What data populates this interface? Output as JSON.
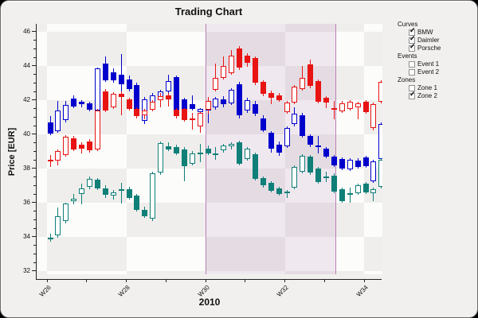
{
  "window": {
    "title": "Trading Chart"
  },
  "axes": {
    "y": {
      "label": "Price [EUR]",
      "ticks": [
        32,
        34,
        36,
        38,
        40,
        42,
        44,
        46
      ],
      "minor_step": 0.5,
      "range": [
        31.8,
        46.5
      ]
    },
    "x": {
      "label": "2010",
      "weeks": [
        26,
        27,
        28,
        29,
        30,
        31,
        32,
        33,
        34
      ],
      "labeled_weeks": [
        26,
        28,
        30,
        32,
        34
      ],
      "tick_label_prefix": "W"
    }
  },
  "legend": {
    "sections": [
      {
        "label": "Curves",
        "items": [
          {
            "label": "BMW",
            "checked": true
          },
          {
            "label": "Daimler",
            "checked": true
          },
          {
            "label": "Porsche",
            "checked": true
          }
        ]
      },
      {
        "label": "Events",
        "items": [
          {
            "label": "Event 1",
            "checked": false
          },
          {
            "label": "Event 2",
            "checked": false
          }
        ]
      },
      {
        "label": "Zones",
        "items": [
          {
            "label": "Zone 1",
            "checked": false
          },
          {
            "label": "Zone 2",
            "checked": true
          }
        ]
      }
    ]
  },
  "zones": {
    "zone2": {
      "from_week": 30.0,
      "to_week": 33.3
    }
  },
  "colors": {
    "bmw": "#0000cc",
    "daimler": "#e81313",
    "porsche": "#0f7f78",
    "checker_light": "#fcfcfb",
    "checker_dark": "#efeeec",
    "zone_fill": "rgba(182,128,180,0.16)",
    "zone_border": "#b981b5",
    "panel": "#f1f0ee",
    "axis": "#222222"
  },
  "chart_data": {
    "type": "candlestick",
    "title": "Trading Chart",
    "xlabel": "2010",
    "ylabel": "Price [EUR]",
    "ylim": [
      31.8,
      46.5
    ],
    "x_description": "Daily candles Mon-Fri, calendar weeks W26 to W34 of 2010 (W34 partial, 3 days); hollow body = close above open, filled body = close below open",
    "grid": "checkerboard 2 EUR x 2 weeks",
    "legend_position": "top-right",
    "highlighted_zone": {
      "name": "Zone 2",
      "from_week": 30.0,
      "to_week": 33.3
    },
    "ohlc_format": [
      "open",
      "high",
      "low",
      "close"
    ],
    "series": [
      {
        "name": "BMW",
        "color": "#0000cc",
        "ohlc": [
          [
            40.7,
            41.05,
            39.95,
            40.05
          ],
          [
            40.2,
            41.95,
            40.1,
            41.4
          ],
          [
            40.85,
            41.95,
            40.7,
            41.7
          ],
          [
            42.1,
            42.3,
            41.55,
            41.65
          ],
          [
            41.9,
            42.0,
            41.6,
            41.75
          ],
          [
            41.8,
            41.9,
            41.35,
            41.45
          ],
          [
            41.4,
            43.9,
            41.3,
            43.85
          ],
          [
            44.15,
            44.55,
            43.05,
            43.15
          ],
          [
            43.65,
            43.85,
            43.0,
            43.15
          ],
          [
            43.5,
            44.7,
            42.05,
            42.95
          ],
          [
            43.2,
            43.45,
            42.5,
            42.65
          ],
          [
            42.9,
            43.0,
            41.3,
            41.4
          ],
          [
            40.8,
            42.2,
            40.6,
            42.05
          ],
          [
            41.75,
            42.4,
            41.6,
            42.3
          ],
          [
            42.0,
            42.6,
            41.9,
            42.5
          ],
          [
            42.5,
            43.5,
            42.35,
            43.1
          ],
          [
            43.35,
            43.45,
            41.25,
            41.35
          ],
          [
            42.05,
            42.15,
            41.3,
            41.4
          ],
          [
            41.75,
            42.3,
            41.4,
            41.5
          ],
          [
            41.3,
            41.55,
            41.1,
            41.5
          ],
          [
            41.4,
            42.0,
            40.65,
            41.85
          ],
          [
            41.6,
            42.2,
            41.45,
            42.1
          ],
          [
            42.05,
            42.25,
            41.6,
            41.75
          ],
          [
            41.8,
            42.7,
            41.7,
            42.6
          ],
          [
            42.95,
            43.05,
            40.95,
            41.1
          ],
          [
            41.4,
            42.15,
            41.25,
            42.0
          ],
          [
            41.75,
            41.95,
            41.05,
            41.2
          ],
          [
            40.95,
            41.1,
            40.15,
            40.25
          ],
          [
            40.1,
            40.2,
            38.95,
            39.15
          ],
          [
            39.4,
            39.6,
            38.75,
            38.95
          ],
          [
            39.3,
            40.45,
            39.2,
            40.35
          ],
          [
            40.6,
            41.6,
            40.45,
            41.2
          ],
          [
            41.1,
            41.25,
            39.8,
            39.9
          ],
          [
            39.9,
            40.0,
            39.25,
            39.4
          ],
          [
            39.3,
            39.9,
            38.9,
            39.35
          ],
          [
            39.15,
            39.25,
            38.6,
            38.7
          ],
          [
            38.7,
            38.8,
            38.1,
            38.2
          ],
          [
            38.55,
            38.65,
            37.9,
            38.0
          ],
          [
            37.95,
            38.6,
            37.85,
            38.5
          ],
          [
            38.45,
            38.6,
            38.0,
            38.1
          ],
          [
            38.65,
            38.75,
            38.05,
            38.15
          ],
          [
            37.25,
            38.5,
            37.15,
            38.4
          ],
          [
            38.55,
            40.7,
            38.45,
            40.6
          ]
        ]
      },
      {
        "name": "Daimler",
        "color": "#e81313",
        "ohlc": [
          [
            38.45,
            38.8,
            38.1,
            38.5
          ],
          [
            38.45,
            39.1,
            38.2,
            39.0
          ],
          [
            38.8,
            39.95,
            38.7,
            39.85
          ],
          [
            39.75,
            39.9,
            39.0,
            39.1
          ],
          [
            39.4,
            39.55,
            38.9,
            39.15
          ],
          [
            39.6,
            39.7,
            38.95,
            39.05
          ],
          [
            39.1,
            41.5,
            39.0,
            41.4
          ],
          [
            42.5,
            42.65,
            41.3,
            41.4
          ],
          [
            41.6,
            42.45,
            41.5,
            42.35
          ],
          [
            42.35,
            42.5,
            41.1,
            42.2
          ],
          [
            42.05,
            42.15,
            41.4,
            41.5
          ],
          [
            41.5,
            41.6,
            40.95,
            41.05
          ],
          [
            41.1,
            41.5,
            40.9,
            41.4
          ],
          [
            41.45,
            42.0,
            41.35,
            41.9
          ],
          [
            42.0,
            42.4,
            41.6,
            42.25
          ],
          [
            42.3,
            42.4,
            41.65,
            42.05
          ],
          [
            41.45,
            41.55,
            40.95,
            41.05
          ],
          [
            41.5,
            41.55,
            40.75,
            40.85
          ],
          [
            40.9,
            41.25,
            40.3,
            40.95
          ],
          [
            40.45,
            41.3,
            40.1,
            41.25
          ],
          [
            41.45,
            42.2,
            41.2,
            41.95
          ],
          [
            42.6,
            44.15,
            42.5,
            43.3
          ],
          [
            43.3,
            44.55,
            43.2,
            44.0
          ],
          [
            43.6,
            44.95,
            43.5,
            44.6
          ],
          [
            45.0,
            45.15,
            43.75,
            43.9
          ],
          [
            44.6,
            44.75,
            43.95,
            44.2
          ],
          [
            44.45,
            44.55,
            42.9,
            43.0
          ],
          [
            43.05,
            43.15,
            42.25,
            42.35
          ],
          [
            42.4,
            42.55,
            41.75,
            42.15
          ],
          [
            42.3,
            42.4,
            41.9,
            42.0
          ],
          [
            41.3,
            41.95,
            41.2,
            41.85
          ],
          [
            41.85,
            42.9,
            41.75,
            42.8
          ],
          [
            42.65,
            44.0,
            42.55,
            43.3
          ],
          [
            44.1,
            44.35,
            42.7,
            42.85
          ],
          [
            43.1,
            43.2,
            41.8,
            41.9
          ],
          [
            42.15,
            42.25,
            41.55,
            41.85
          ],
          [
            41.5,
            41.95,
            40.9,
            41.55
          ],
          [
            41.35,
            41.95,
            41.25,
            41.8
          ],
          [
            41.5,
            42.0,
            41.4,
            41.9
          ],
          [
            41.6,
            41.9,
            40.9,
            41.8
          ],
          [
            41.9,
            42.0,
            41.2,
            41.3
          ],
          [
            40.35,
            41.85,
            40.25,
            41.75
          ],
          [
            41.9,
            43.15,
            41.8,
            43.05
          ]
        ]
      },
      {
        "name": "Porsche",
        "color": "#0f7f78",
        "ohlc": [
          [
            33.9,
            34.2,
            33.7,
            33.95
          ],
          [
            34.1,
            35.7,
            33.95,
            35.2
          ],
          [
            34.95,
            36.0,
            34.8,
            35.95
          ],
          [
            36.1,
            36.5,
            35.9,
            36.25
          ],
          [
            36.5,
            37.1,
            35.9,
            36.85
          ],
          [
            36.95,
            37.55,
            36.8,
            37.4
          ],
          [
            37.35,
            37.45,
            36.75,
            36.85
          ],
          [
            36.85,
            37.0,
            36.3,
            36.45
          ],
          [
            36.4,
            36.75,
            36.2,
            36.6
          ],
          [
            36.75,
            37.15,
            35.95,
            36.8
          ],
          [
            36.8,
            36.95,
            36.2,
            36.3
          ],
          [
            36.4,
            36.5,
            35.5,
            35.6
          ],
          [
            35.6,
            35.75,
            35.1,
            35.2
          ],
          [
            35.05,
            37.8,
            34.95,
            37.7
          ],
          [
            37.75,
            39.6,
            37.65,
            39.5
          ],
          [
            39.3,
            39.55,
            39.0,
            39.1
          ],
          [
            39.25,
            39.4,
            38.8,
            38.9
          ],
          [
            39.1,
            39.25,
            37.25,
            38.15
          ],
          [
            38.3,
            39.0,
            38.2,
            38.9
          ],
          [
            38.9,
            39.45,
            38.35,
            38.95
          ],
          [
            39.15,
            39.35,
            38.8,
            38.9
          ],
          [
            38.85,
            39.25,
            38.5,
            38.9
          ],
          [
            39.05,
            39.45,
            38.95,
            39.35
          ],
          [
            39.3,
            39.55,
            39.1,
            39.45
          ],
          [
            39.55,
            39.65,
            38.2,
            38.3
          ],
          [
            38.55,
            39.25,
            38.45,
            39.15
          ],
          [
            38.85,
            38.95,
            37.3,
            37.4
          ],
          [
            37.45,
            37.55,
            36.9,
            37.0
          ],
          [
            37.15,
            37.25,
            36.6,
            36.7
          ],
          [
            36.85,
            36.95,
            36.4,
            36.5
          ],
          [
            36.6,
            36.75,
            36.3,
            36.65
          ],
          [
            36.9,
            38.2,
            36.8,
            38.1
          ],
          [
            37.8,
            38.85,
            37.7,
            38.75
          ],
          [
            38.7,
            38.8,
            37.65,
            37.75
          ],
          [
            38.0,
            38.1,
            37.1,
            37.2
          ],
          [
            37.55,
            37.8,
            37.2,
            37.45
          ],
          [
            37.6,
            37.7,
            36.55,
            36.65
          ],
          [
            36.8,
            36.9,
            36.0,
            36.1
          ],
          [
            36.5,
            36.9,
            36.0,
            36.55
          ],
          [
            36.55,
            37.1,
            36.45,
            37.0
          ],
          [
            37.1,
            37.2,
            36.5,
            36.6
          ],
          [
            36.55,
            36.9,
            36.1,
            36.8
          ],
          [
            36.95,
            38.6,
            36.85,
            38.5
          ]
        ]
      }
    ]
  }
}
